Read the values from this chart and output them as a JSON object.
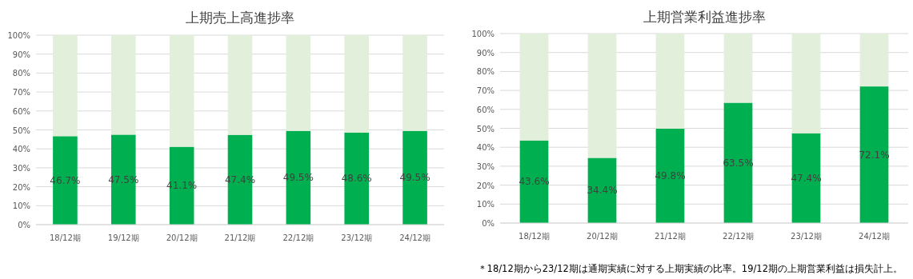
{
  "chart_data": [
    {
      "type": "bar",
      "title": "上期売上高進捗率",
      "stacked": true,
      "grid": "y",
      "categories": [
        "18/12期",
        "19/12期",
        "20/12期",
        "21/12期",
        "22/12期",
        "23/12期",
        "24/12期"
      ],
      "series": [
        {
          "color": "#00b050",
          "values": [
            46.7,
            47.5,
            41.1,
            47.4,
            49.5,
            48.6,
            49.5
          ],
          "value_labels": [
            "46.7%",
            "47.5%",
            "41.1%",
            "47.4%",
            "49.5%",
            "48.6%",
            "49.5%"
          ]
        },
        {
          "color": "#e2efda",
          "values": [
            53.3,
            52.5,
            58.9,
            52.6,
            50.5,
            51.4,
            50.5
          ]
        }
      ],
      "ylim": [
        0,
        100
      ],
      "yticks": [
        {
          "value": 0,
          "label": "0%"
        },
        {
          "value": 10,
          "label": "10%"
        },
        {
          "value": 20,
          "label": "20%"
        },
        {
          "value": 30,
          "label": "30%"
        },
        {
          "value": 40,
          "label": "40%"
        },
        {
          "value": 50,
          "label": "50%"
        },
        {
          "value": 60,
          "label": "60%"
        },
        {
          "value": 70,
          "label": "70%"
        },
        {
          "value": 80,
          "label": "80%"
        },
        {
          "value": 90,
          "label": "90%"
        },
        {
          "value": 100,
          "label": "100%"
        }
      ]
    },
    {
      "type": "bar",
      "title": "上期営業利益進捗率",
      "stacked": true,
      "grid": "y",
      "categories": [
        "18/12期",
        "20/12期",
        "21/12期",
        "22/12期",
        "23/12期",
        "24/12期"
      ],
      "series": [
        {
          "color": "#00b050",
          "values": [
            43.6,
            34.4,
            49.8,
            63.5,
            47.4,
            72.1
          ],
          "value_labels": [
            "43.6%",
            "34.4%",
            "49.8%",
            "63.5%",
            "47.4%",
            "72.1%"
          ]
        },
        {
          "color": "#e2efda",
          "values": [
            56.4,
            65.6,
            50.2,
            36.5,
            52.6,
            27.9
          ]
        }
      ],
      "ylim": [
        0,
        100
      ],
      "yticks": [
        {
          "value": 0,
          "label": "0%"
        },
        {
          "value": 10,
          "label": "10%"
        },
        {
          "value": 20,
          "label": "20%"
        },
        {
          "value": 30,
          "label": "30%"
        },
        {
          "value": 40,
          "label": "40%"
        },
        {
          "value": 50,
          "label": "50%"
        },
        {
          "value": 60,
          "label": "60%"
        },
        {
          "value": 70,
          "label": "70%"
        },
        {
          "value": 80,
          "label": "80%"
        },
        {
          "value": 90,
          "label": "90%"
        },
        {
          "value": 100,
          "label": "100%"
        }
      ],
      "annotations": [
        "＊18/12期から23/12期は通期実績に対する上期実績の比率。19/12期の上期営業利益は損失計上。"
      ]
    }
  ]
}
